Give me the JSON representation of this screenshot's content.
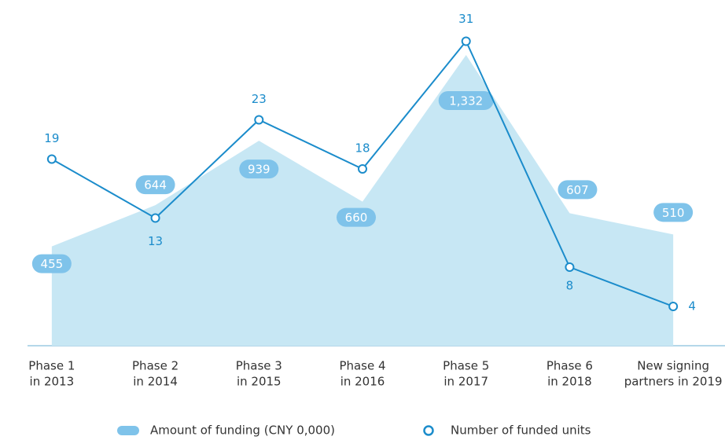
{
  "chart_data": {
    "type": "area-line",
    "categories": [
      [
        "Phase 1",
        "in 2013"
      ],
      [
        "Phase 2",
        "in 2014"
      ],
      [
        "Phase 3",
        "in 2015"
      ],
      [
        "Phase 4",
        "in 2016"
      ],
      [
        "Phase 5",
        "in 2017"
      ],
      [
        "Phase 6",
        "in 2018"
      ],
      [
        "New signing",
        "partners in 2019"
      ]
    ],
    "series": [
      {
        "name": "Amount of funding (CNY 0,000)",
        "type": "area",
        "color": "#c7e7f4",
        "label_color": "#7fc3ea",
        "values": [
          455,
          644,
          939,
          660,
          1332,
          607,
          510
        ],
        "value_labels": [
          "455",
          "644",
          "939",
          "660",
          "1,332",
          "607",
          "510"
        ]
      },
      {
        "name": "Number of funded units",
        "type": "line",
        "axis": "y2",
        "color": "#1b8ccb",
        "values": [
          19,
          13,
          23,
          18,
          31,
          8,
          4
        ]
      }
    ],
    "ylim": [
      0,
      1440
    ],
    "y2lim": [
      0,
      32
    ],
    "grid": false,
    "legend": "bottom"
  }
}
